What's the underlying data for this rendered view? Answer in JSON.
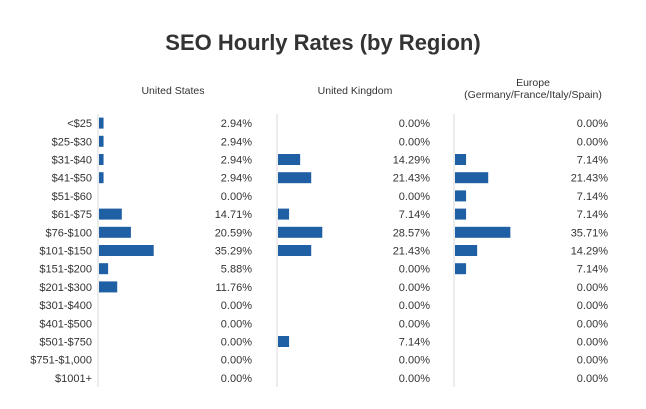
{
  "chart_data": {
    "type": "bar",
    "orientation": "horizontal",
    "title": "SEO Hourly Rates (by Region)",
    "categories": [
      "<$25",
      "$25-$30",
      "$31-$40",
      "$41-$50",
      "$51-$60",
      "$61-$75",
      "$76-$100",
      "$101-$150",
      "$151-$200",
      "$201-$300",
      "$301-$400",
      "$401-$500",
      "$501-$750",
      "$751-$1,000",
      "$1001+"
    ],
    "series": [
      {
        "name": "United States",
        "title_lines": [
          "United States"
        ],
        "values": [
          2.94,
          2.94,
          2.94,
          2.94,
          0.0,
          14.71,
          20.59,
          35.29,
          5.88,
          11.76,
          0.0,
          0.0,
          0.0,
          0.0,
          0.0
        ],
        "labels": [
          "2.94%",
          "2.94%",
          "2.94%",
          "2.94%",
          "0.00%",
          "14.71%",
          "20.59%",
          "35.29%",
          "5.88%",
          "11.76%",
          "0.00%",
          "0.00%",
          "0.00%",
          "0.00%",
          "0.00%"
        ]
      },
      {
        "name": "United Kingdom",
        "title_lines": [
          "United Kingdom"
        ],
        "values": [
          0.0,
          0.0,
          14.29,
          21.43,
          0.0,
          7.14,
          28.57,
          21.43,
          0.0,
          0.0,
          0.0,
          0.0,
          7.14,
          0.0,
          0.0
        ],
        "labels": [
          "0.00%",
          "0.00%",
          "14.29%",
          "21.43%",
          "0.00%",
          "7.14%",
          "28.57%",
          "21.43%",
          "0.00%",
          "0.00%",
          "0.00%",
          "0.00%",
          "7.14%",
          "0.00%",
          "0.00%"
        ]
      },
      {
        "name": "Europe (Germany/France/Italy/Spain)",
        "title_lines": [
          "Europe",
          "(Germany/France/Italy/Spain)"
        ],
        "values": [
          0.0,
          0.0,
          7.14,
          21.43,
          7.14,
          7.14,
          35.71,
          14.29,
          7.14,
          0.0,
          0.0,
          0.0,
          0.0,
          0.0,
          0.0
        ],
        "labels": [
          "0.00%",
          "0.00%",
          "7.14%",
          "21.43%",
          "7.14%",
          "7.14%",
          "35.71%",
          "14.29%",
          "7.14%",
          "0.00%",
          "0.00%",
          "0.00%",
          "0.00%",
          "0.00%",
          "0.00%"
        ]
      }
    ],
    "value_unit": "%",
    "xlim": [
      0,
      100
    ],
    "grid": false,
    "bar_color": "#1f5fa3"
  }
}
